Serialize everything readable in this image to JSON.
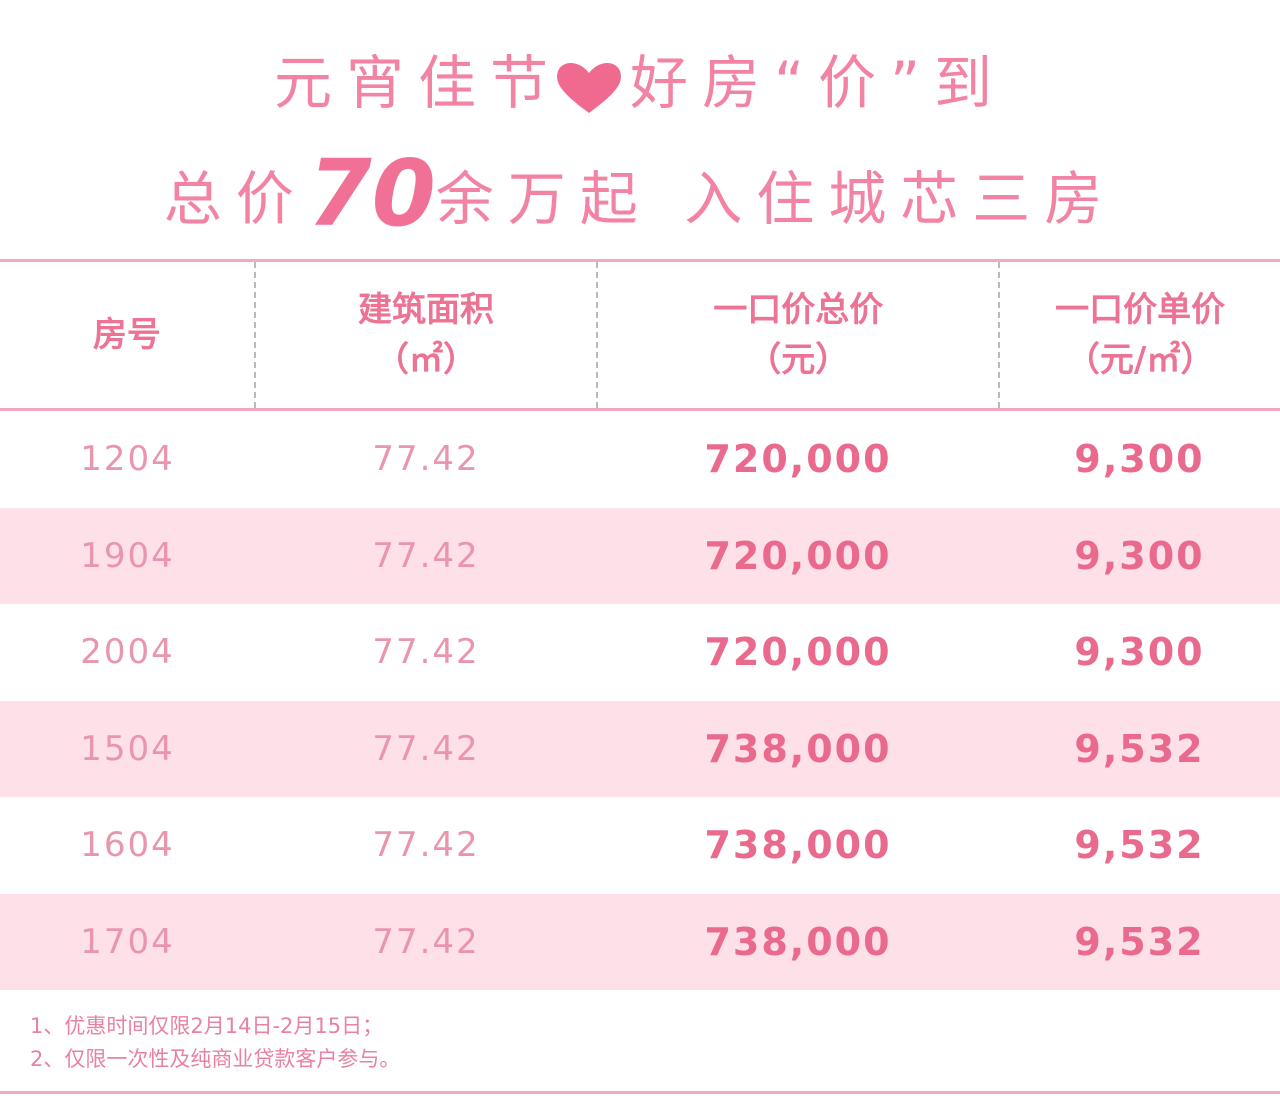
{
  "title": {
    "line1": {
      "before": "元宵佳节",
      "after": "好房“价”到"
    },
    "line2": {
      "before": "总价",
      "highlight": "70",
      "after": "余万起 入住城芯三房"
    }
  },
  "table": {
    "columns": [
      {
        "label": "房号"
      },
      {
        "label": "建筑面积",
        "unit": "（㎡）"
      },
      {
        "label": "一口价总价",
        "unit": "（元）"
      },
      {
        "label": "一口价单价",
        "unit": "（元/㎡）"
      }
    ],
    "rows": [
      [
        "1204",
        "77.42",
        "720,000",
        "9,300"
      ],
      [
        "1904",
        "77.42",
        "720,000",
        "9,300"
      ],
      [
        "2004",
        "77.42",
        "720,000",
        "9,300"
      ],
      [
        "1504",
        "77.42",
        "738,000",
        "9,532"
      ],
      [
        "1604",
        "77.42",
        "738,000",
        "9,532"
      ],
      [
        "1704",
        "77.42",
        "738,000",
        "9,532"
      ]
    ]
  },
  "notes": [
    "1、优惠时间仅限2月14日-2月15日；",
    "2、仅限一次性及纯商业贷款客户参与。"
  ]
}
